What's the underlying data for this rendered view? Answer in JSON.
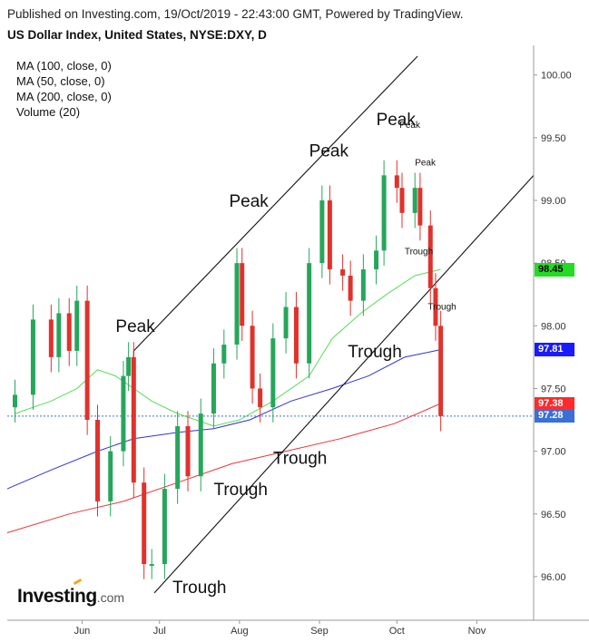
{
  "header": {
    "published": "Published on Investing.com, 19/Oct/2019 - 22:43:00 GMT, Powered by TradingView.",
    "title": "US Dollar Index, United States, NYSE:DXY, D"
  },
  "legend": [
    "MA (100, close, 0)",
    "MA (50, close, 0)",
    "MA (200, close, 0)",
    "Volume (20)"
  ],
  "logo": {
    "text": "Investing",
    "suffix": ".com"
  },
  "price_badges": [
    {
      "label": "98.45",
      "value": 98.45,
      "bg": "#22dd22",
      "fg": "#000000"
    },
    {
      "label": "97.81",
      "value": 97.81,
      "bg": "#1a1aff",
      "fg": "#ffffff"
    },
    {
      "label": "97.38",
      "value": 97.38,
      "bg": "#ff2a2a",
      "fg": "#ffffff"
    },
    {
      "label": "97.28",
      "value": 97.28,
      "bg": "#3a6fd8",
      "fg": "#ffffff"
    }
  ],
  "chart_data": {
    "type": "candlestick",
    "ylim": [
      95.5,
      100.5
    ],
    "y_ticks": [
      "96.00",
      "96.50",
      "97.00",
      "97.50",
      "98.00",
      "98.50",
      "99.00",
      "99.50",
      "100.00"
    ],
    "x_ticks": [
      {
        "label": "Jun",
        "date": "2019-06-01"
      },
      {
        "label": "Jul",
        "date": "2019-07-01"
      },
      {
        "label": "Aug",
        "date": "2019-08-01"
      },
      {
        "label": "Sep",
        "date": "2019-09-01"
      },
      {
        "label": "Oct",
        "date": "2019-10-01"
      },
      {
        "label": "Nov",
        "date": "2019-11-01"
      }
    ],
    "x_range": [
      "2019-05-03",
      "2019-11-23"
    ],
    "colors": {
      "up": "#26a65b",
      "down": "#e0322c",
      "ma50": "#55dd55",
      "ma100": "#3333dd",
      "ma200": "#ee3333",
      "last_price": "#3a6fd8"
    },
    "last_price": 97.28,
    "candle_closes": [
      {
        "date": "2019-05-06",
        "close": 97.45
      },
      {
        "date": "2019-05-13",
        "close": 98.05
      },
      {
        "date": "2019-05-20",
        "close": 97.75
      },
      {
        "date": "2019-05-23",
        "close": 98.1
      },
      {
        "date": "2019-05-27",
        "close": 97.8
      },
      {
        "date": "2019-05-30",
        "close": 98.2
      },
      {
        "date": "2019-06-03",
        "close": 97.25
      },
      {
        "date": "2019-06-07",
        "close": 96.6
      },
      {
        "date": "2019-06-12",
        "close": 97.0
      },
      {
        "date": "2019-06-17",
        "close": 97.6
      },
      {
        "date": "2019-06-19",
        "close": 97.75
      },
      {
        "date": "2019-06-21",
        "close": 96.75
      },
      {
        "date": "2019-06-25",
        "close": 96.1
      },
      {
        "date": "2019-06-28",
        "close": 96.1
      },
      {
        "date": "2019-07-03",
        "close": 96.7
      },
      {
        "date": "2019-07-08",
        "close": 97.2
      },
      {
        "date": "2019-07-12",
        "close": 96.8
      },
      {
        "date": "2019-07-17",
        "close": 97.3
      },
      {
        "date": "2019-07-22",
        "close": 97.7
      },
      {
        "date": "2019-07-26",
        "close": 97.85
      },
      {
        "date": "2019-07-31",
        "close": 98.5
      },
      {
        "date": "2019-08-02",
        "close": 98.0
      },
      {
        "date": "2019-08-06",
        "close": 97.5
      },
      {
        "date": "2019-08-09",
        "close": 97.35
      },
      {
        "date": "2019-08-14",
        "close": 97.9
      },
      {
        "date": "2019-08-19",
        "close": 98.15
      },
      {
        "date": "2019-08-23",
        "close": 97.7
      },
      {
        "date": "2019-08-28",
        "close": 98.5
      },
      {
        "date": "2019-09-02",
        "close": 99.0
      },
      {
        "date": "2019-09-05",
        "close": 98.45
      },
      {
        "date": "2019-09-10",
        "close": 98.4
      },
      {
        "date": "2019-09-13",
        "close": 98.2
      },
      {
        "date": "2019-09-18",
        "close": 98.45
      },
      {
        "date": "2019-09-23",
        "close": 98.6
      },
      {
        "date": "2019-09-26",
        "close": 99.2
      },
      {
        "date": "2019-10-01",
        "close": 99.1
      },
      {
        "date": "2019-10-03",
        "close": 98.9
      },
      {
        "date": "2019-10-08",
        "close": 99.1
      },
      {
        "date": "2019-10-10",
        "close": 98.8
      },
      {
        "date": "2019-10-14",
        "close": 98.3
      },
      {
        "date": "2019-10-16",
        "close": 98.0
      },
      {
        "date": "2019-10-18",
        "close": 97.28
      }
    ],
    "moving_averages": [
      {
        "name": "MA (50, close, 0)",
        "points": [
          {
            "date": "2019-05-06",
            "y": 97.3
          },
          {
            "date": "2019-05-20",
            "y": 97.4
          },
          {
            "date": "2019-05-30",
            "y": 97.5
          },
          {
            "date": "2019-06-07",
            "y": 97.65
          },
          {
            "date": "2019-06-14",
            "y": 97.6
          },
          {
            "date": "2019-06-28",
            "y": 97.4
          },
          {
            "date": "2019-07-08",
            "y": 97.3
          },
          {
            "date": "2019-07-22",
            "y": 97.2
          },
          {
            "date": "2019-08-01",
            "y": 97.25
          },
          {
            "date": "2019-08-14",
            "y": 97.4
          },
          {
            "date": "2019-08-28",
            "y": 97.6
          },
          {
            "date": "2019-09-06",
            "y": 97.9
          },
          {
            "date": "2019-09-17",
            "y": 98.1
          },
          {
            "date": "2019-09-27",
            "y": 98.25
          },
          {
            "date": "2019-10-08",
            "y": 98.4
          },
          {
            "date": "2019-10-18",
            "y": 98.45
          }
        ]
      },
      {
        "name": "MA (100, close, 0)",
        "points": [
          {
            "date": "2019-05-03",
            "y": 96.7
          },
          {
            "date": "2019-05-20",
            "y": 96.85
          },
          {
            "date": "2019-06-07",
            "y": 97.0
          },
          {
            "date": "2019-06-21",
            "y": 97.1
          },
          {
            "date": "2019-07-08",
            "y": 97.15
          },
          {
            "date": "2019-07-22",
            "y": 97.18
          },
          {
            "date": "2019-08-05",
            "y": 97.25
          },
          {
            "date": "2019-08-21",
            "y": 97.4
          },
          {
            "date": "2019-09-06",
            "y": 97.5
          },
          {
            "date": "2019-09-20",
            "y": 97.6
          },
          {
            "date": "2019-10-04",
            "y": 97.75
          },
          {
            "date": "2019-10-18",
            "y": 97.81
          }
        ]
      },
      {
        "name": "MA (200, close, 0)",
        "points": [
          {
            "date": "2019-05-03",
            "y": 96.35
          },
          {
            "date": "2019-05-27",
            "y": 96.5
          },
          {
            "date": "2019-06-17",
            "y": 96.6
          },
          {
            "date": "2019-07-08",
            "y": 96.75
          },
          {
            "date": "2019-07-29",
            "y": 96.9
          },
          {
            "date": "2019-08-19",
            "y": 97.0
          },
          {
            "date": "2019-09-09",
            "y": 97.1
          },
          {
            "date": "2019-09-30",
            "y": 97.22
          },
          {
            "date": "2019-10-18",
            "y": 97.38
          }
        ]
      }
    ],
    "trendlines": [
      {
        "name": "channel-upper",
        "from": {
          "date": "2019-06-21",
          "y": 97.8
        },
        "to": {
          "date": "2019-10-09",
          "y": 100.15
        }
      },
      {
        "name": "channel-lower",
        "from": {
          "date": "2019-06-29",
          "y": 95.87
        },
        "to": {
          "date": "2019-11-23",
          "y": 99.2
        }
      },
      {
        "name": "channel-top-start",
        "from": {
          "date": "2019-06-21",
          "y": 97.8
        },
        "to": {
          "date": "2019-06-21",
          "y": 97.72
        }
      }
    ],
    "annotations": [
      {
        "text": "Peak",
        "date": "2019-06-14",
        "y": 97.95,
        "size": "large"
      },
      {
        "text": "Peak",
        "date": "2019-07-28",
        "y": 98.95,
        "size": "large"
      },
      {
        "text": "Peak",
        "date": "2019-08-28",
        "y": 99.35,
        "size": "large"
      },
      {
        "text": "Peak",
        "date": "2019-09-23",
        "y": 99.6,
        "size": "large"
      },
      {
        "text": "Peak",
        "date": "2019-10-02",
        "y": 99.58,
        "size": "small"
      },
      {
        "text": "Peak",
        "date": "2019-10-08",
        "y": 99.28,
        "size": "small"
      },
      {
        "text": "Trough",
        "date": "2019-10-04",
        "y": 98.57,
        "size": "small"
      },
      {
        "text": "Trough",
        "date": "2019-10-13",
        "y": 98.13,
        "size": "small"
      },
      {
        "text": "Trough",
        "date": "2019-09-12",
        "y": 97.75,
        "size": "large"
      },
      {
        "text": "Trough",
        "date": "2019-08-14",
        "y": 96.9,
        "size": "large"
      },
      {
        "text": "Trough",
        "date": "2019-07-22",
        "y": 96.65,
        "size": "large"
      },
      {
        "text": "Trough",
        "date": "2019-07-06",
        "y": 95.87,
        "size": "large"
      }
    ]
  }
}
